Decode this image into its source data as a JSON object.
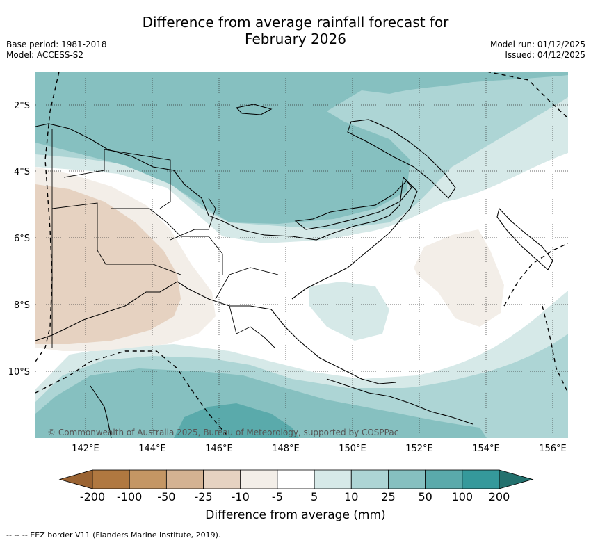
{
  "title_line1": "Difference from average rainfall forecast for",
  "title_line2": "February 2026",
  "base_period": "Base period: 1981-2018",
  "model": "Model: ACCESS-S2",
  "model_run": "Model run: 01/12/2025",
  "issued": "Issued: 04/12/2025",
  "copyright": "© Commonwealth of Australia 2025, Bureau of Meteorology, supported by COSPPac",
  "lat_labels": [
    "2°S",
    "4°S",
    "6°S",
    "8°S",
    "10°S"
  ],
  "lon_labels": [
    "142°E",
    "144°E",
    "146°E",
    "148°E",
    "150°E",
    "152°E",
    "154°E",
    "156°E"
  ],
  "colorbar": {
    "title": "Difference from average (mm)",
    "ticks": [
      "-200",
      "-100",
      "-50",
      "-25",
      "-10",
      "-5",
      "5",
      "10",
      "25",
      "50",
      "100",
      "200"
    ],
    "colors": [
      "#9a6332",
      "#b07840",
      "#c49664",
      "#d4b292",
      "#e6d2c1",
      "#f3eee8",
      "#ffffff",
      "#d6e9e8",
      "#add5d5",
      "#86c0c0",
      "#5aaaab",
      "#35999b",
      "#23716e"
    ]
  },
  "eez_note": "-- -- -- EEZ border V11 (Flanders Marine Institute, 2019)."
}
